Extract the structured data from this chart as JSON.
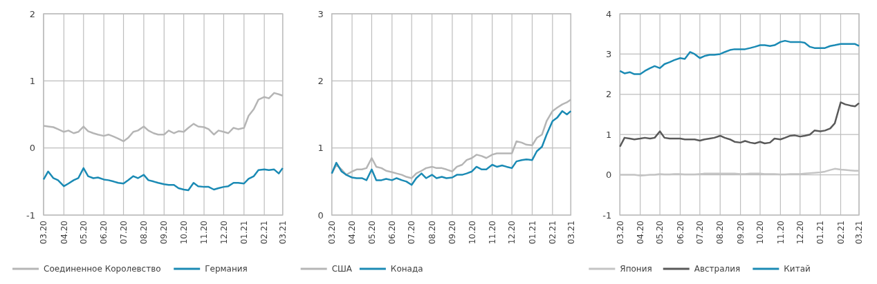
{
  "chart_data": [
    {
      "type": "line",
      "x": [
        "2020-03-01",
        "2020-03-08",
        "2020-03-16",
        "2020-03-23",
        "2020-04-01",
        "2020-04-08",
        "2020-04-16",
        "2020-04-23",
        "2020-05-01",
        "2020-05-08",
        "2020-05-16",
        "2020-05-23",
        "2020-06-01",
        "2020-06-08",
        "2020-06-16",
        "2020-06-23",
        "2020-07-01",
        "2020-07-08",
        "2020-07-16",
        "2020-07-23",
        "2020-08-01",
        "2020-08-08",
        "2020-08-16",
        "2020-08-23",
        "2020-09-01",
        "2020-09-08",
        "2020-09-16",
        "2020-09-23",
        "2020-10-01",
        "2020-10-08",
        "2020-10-16",
        "2020-10-23",
        "2020-11-01",
        "2020-11-08",
        "2020-11-16",
        "2020-11-23",
        "2020-12-01",
        "2020-12-08",
        "2020-12-16",
        "2020-12-23",
        "2021-01-01",
        "2021-01-08",
        "2021-01-16",
        "2021-01-23",
        "2021-02-01",
        "2021-02-08",
        "2021-02-16",
        "2021-02-23",
        "2021-03-01"
      ],
      "xlim": [
        "2020-03-01",
        "2021-03-01"
      ],
      "xticks": [
        {
          "value": "2020-03-01",
          "label": "03.20"
        },
        {
          "value": "2020-04-01",
          "label": "04.20"
        },
        {
          "value": "2020-05-01",
          "label": "05.20"
        },
        {
          "value": "2020-06-01",
          "label": "06.20"
        },
        {
          "value": "2020-07-01",
          "label": "07.20"
        },
        {
          "value": "2020-08-01",
          "label": "08.20"
        },
        {
          "value": "2020-09-01",
          "label": "09.20"
        },
        {
          "value": "2020-10-01",
          "label": "10.20"
        },
        {
          "value": "2020-11-01",
          "label": "11.20"
        },
        {
          "value": "2020-12-01",
          "label": "12.20"
        },
        {
          "value": "2021-01-01",
          "label": "01.21"
        },
        {
          "value": "2021-02-01",
          "label": "02.21"
        },
        {
          "value": "2021-03-01",
          "label": "03.21"
        }
      ],
      "ylim": [
        -1,
        2
      ],
      "yticks": [
        -1,
        0,
        1,
        2
      ],
      "grid": true,
      "legend": "bottom",
      "series": [
        {
          "name": "Соединенное Королевство",
          "color": "#b5b5b5",
          "values": [
            0.33,
            0.32,
            0.31,
            0.28,
            0.24,
            0.26,
            0.22,
            0.24,
            0.32,
            0.25,
            0.22,
            0.2,
            0.18,
            0.2,
            0.17,
            0.14,
            0.1,
            0.15,
            0.24,
            0.26,
            0.32,
            0.26,
            0.22,
            0.2,
            0.2,
            0.26,
            0.22,
            0.25,
            0.24,
            0.3,
            0.36,
            0.32,
            0.31,
            0.28,
            0.2,
            0.26,
            0.24,
            0.22,
            0.3,
            0.28,
            0.3,
            0.48,
            0.58,
            0.72,
            0.76,
            0.74,
            0.82,
            0.8,
            0.78
          ]
        },
        {
          "name": "Германия",
          "color": "#1a8ab4",
          "values": [
            -0.47,
            -0.35,
            -0.45,
            -0.48,
            -0.57,
            -0.53,
            -0.48,
            -0.45,
            -0.3,
            -0.42,
            -0.45,
            -0.44,
            -0.47,
            -0.48,
            -0.5,
            -0.52,
            -0.53,
            -0.48,
            -0.42,
            -0.45,
            -0.4,
            -0.48,
            -0.5,
            -0.52,
            -0.54,
            -0.55,
            -0.55,
            -0.6,
            -0.62,
            -0.63,
            -0.52,
            -0.57,
            -0.58,
            -0.58,
            -0.62,
            -0.6,
            -0.58,
            -0.57,
            -0.52,
            -0.52,
            -0.53,
            -0.46,
            -0.42,
            -0.33,
            -0.32,
            -0.33,
            -0.32,
            -0.38,
            -0.3
          ]
        }
      ]
    },
    {
      "type": "line",
      "x": [
        "2020-03-01",
        "2020-03-08",
        "2020-03-16",
        "2020-03-23",
        "2020-04-01",
        "2020-04-08",
        "2020-04-16",
        "2020-04-23",
        "2020-05-01",
        "2020-05-08",
        "2020-05-16",
        "2020-05-23",
        "2020-06-01",
        "2020-06-08",
        "2020-06-16",
        "2020-06-23",
        "2020-07-01",
        "2020-07-08",
        "2020-07-16",
        "2020-07-23",
        "2020-08-01",
        "2020-08-08",
        "2020-08-16",
        "2020-08-23",
        "2020-09-01",
        "2020-09-08",
        "2020-09-16",
        "2020-09-23",
        "2020-10-01",
        "2020-10-08",
        "2020-10-16",
        "2020-10-23",
        "2020-11-01",
        "2020-11-08",
        "2020-11-16",
        "2020-11-23",
        "2020-12-01",
        "2020-12-08",
        "2020-12-16",
        "2020-12-23",
        "2021-01-01",
        "2021-01-08",
        "2021-01-16",
        "2021-01-23",
        "2021-02-01",
        "2021-02-08",
        "2021-02-16",
        "2021-02-23",
        "2021-03-01"
      ],
      "xlim": [
        "2020-03-01",
        "2021-03-01"
      ],
      "xticks": [
        {
          "value": "2020-03-01",
          "label": "03.20"
        },
        {
          "value": "2020-04-01",
          "label": "04.20"
        },
        {
          "value": "2020-05-01",
          "label": "05.20"
        },
        {
          "value": "2020-06-01",
          "label": "06.20"
        },
        {
          "value": "2020-07-01",
          "label": "07.20"
        },
        {
          "value": "2020-08-01",
          "label": "08.20"
        },
        {
          "value": "2020-09-01",
          "label": "09.20"
        },
        {
          "value": "2020-10-01",
          "label": "10.20"
        },
        {
          "value": "2020-11-01",
          "label": "11.20"
        },
        {
          "value": "2020-12-01",
          "label": "12.20"
        },
        {
          "value": "2021-01-01",
          "label": "01.21"
        },
        {
          "value": "2021-02-01",
          "label": "02.21"
        },
        {
          "value": "2021-03-01",
          "label": "03.21"
        }
      ],
      "ylim": [
        0,
        3
      ],
      "yticks": [
        0,
        1,
        2,
        3
      ],
      "grid": true,
      "legend": "bottom",
      "series": [
        {
          "name": "США",
          "color": "#b5b5b5",
          "values": [
            0.62,
            0.75,
            0.68,
            0.6,
            0.65,
            0.68,
            0.68,
            0.7,
            0.85,
            0.72,
            0.7,
            0.66,
            0.64,
            0.62,
            0.6,
            0.57,
            0.55,
            0.62,
            0.66,
            0.7,
            0.72,
            0.7,
            0.7,
            0.68,
            0.65,
            0.72,
            0.75,
            0.82,
            0.85,
            0.9,
            0.88,
            0.85,
            0.9,
            0.92,
            0.92,
            0.92,
            0.92,
            1.1,
            1.08,
            1.05,
            1.04,
            1.15,
            1.2,
            1.4,
            1.55,
            1.6,
            1.65,
            1.68,
            1.72
          ]
        },
        {
          "name": "Конада",
          "color": "#1a8ab4",
          "values": [
            0.62,
            0.78,
            0.65,
            0.6,
            0.56,
            0.55,
            0.55,
            0.52,
            0.68,
            0.52,
            0.52,
            0.54,
            0.52,
            0.55,
            0.52,
            0.5,
            0.45,
            0.55,
            0.62,
            0.55,
            0.6,
            0.55,
            0.57,
            0.55,
            0.56,
            0.6,
            0.6,
            0.62,
            0.65,
            0.72,
            0.68,
            0.68,
            0.75,
            0.72,
            0.74,
            0.72,
            0.7,
            0.8,
            0.82,
            0.83,
            0.82,
            0.95,
            1.02,
            1.2,
            1.4,
            1.45,
            1.55,
            1.5,
            1.55
          ]
        }
      ]
    },
    {
      "type": "line",
      "x": [
        "2020-03-01",
        "2020-03-08",
        "2020-03-16",
        "2020-03-23",
        "2020-04-01",
        "2020-04-08",
        "2020-04-16",
        "2020-04-23",
        "2020-05-01",
        "2020-05-08",
        "2020-05-16",
        "2020-05-23",
        "2020-06-01",
        "2020-06-08",
        "2020-06-16",
        "2020-06-23",
        "2020-07-01",
        "2020-07-08",
        "2020-07-16",
        "2020-07-23",
        "2020-08-01",
        "2020-08-08",
        "2020-08-16",
        "2020-08-23",
        "2020-09-01",
        "2020-09-08",
        "2020-09-16",
        "2020-09-23",
        "2020-10-01",
        "2020-10-08",
        "2020-10-16",
        "2020-10-23",
        "2020-11-01",
        "2020-11-08",
        "2020-11-16",
        "2020-11-23",
        "2020-12-01",
        "2020-12-08",
        "2020-12-16",
        "2020-12-23",
        "2021-01-01",
        "2021-01-08",
        "2021-01-16",
        "2021-01-23",
        "2021-02-01",
        "2021-02-08",
        "2021-02-16",
        "2021-02-23",
        "2021-03-01"
      ],
      "xlim": [
        "2020-03-01",
        "2021-03-01"
      ],
      "xticks": [
        {
          "value": "2020-03-01",
          "label": "03.20"
        },
        {
          "value": "2020-04-01",
          "label": "04.20"
        },
        {
          "value": "2020-05-01",
          "label": "05.20"
        },
        {
          "value": "2020-06-01",
          "label": "06.20"
        },
        {
          "value": "2020-07-01",
          "label": "07.20"
        },
        {
          "value": "2020-08-01",
          "label": "08.20"
        },
        {
          "value": "2020-09-01",
          "label": "09.20"
        },
        {
          "value": "2020-10-01",
          "label": "10.20"
        },
        {
          "value": "2020-11-01",
          "label": "11.20"
        },
        {
          "value": "2020-12-01",
          "label": "12.20"
        },
        {
          "value": "2021-01-01",
          "label": "01.21"
        },
        {
          "value": "2021-02-01",
          "label": "02.21"
        },
        {
          "value": "2021-03-01",
          "label": "03.21"
        }
      ],
      "ylim": [
        -1,
        4
      ],
      "yticks": [
        -1,
        0,
        1,
        2,
        3,
        4
      ],
      "grid": true,
      "legend": "bottom",
      "series": [
        {
          "name": "Япония",
          "color": "#c4c4c4",
          "values": [
            0,
            0,
            0,
            0,
            -0.02,
            -0.01,
            0,
            0,
            0.02,
            0.01,
            0.01,
            0.02,
            0.02,
            0.01,
            0.01,
            0.01,
            0.02,
            0.03,
            0.03,
            0.03,
            0.03,
            0.03,
            0.03,
            0.03,
            0.02,
            0.02,
            0.03,
            0.03,
            0.03,
            0.02,
            0.02,
            0.02,
            0.01,
            0.01,
            0.02,
            0.02,
            0.02,
            0.03,
            0.04,
            0.05,
            0.06,
            0.08,
            0.12,
            0.15,
            0.13,
            0.12,
            0.11,
            0.1,
            0.1
          ]
        },
        {
          "name": "Австралия",
          "color": "#595959",
          "values": [
            0.7,
            0.92,
            0.9,
            0.88,
            0.9,
            0.92,
            0.9,
            0.92,
            1.08,
            0.92,
            0.9,
            0.9,
            0.9,
            0.88,
            0.88,
            0.88,
            0.85,
            0.88,
            0.9,
            0.92,
            0.97,
            0.92,
            0.88,
            0.82,
            0.8,
            0.84,
            0.8,
            0.78,
            0.82,
            0.78,
            0.8,
            0.9,
            0.88,
            0.92,
            0.97,
            0.98,
            0.95,
            0.97,
            1.0,
            1.1,
            1.08,
            1.1,
            1.15,
            1.28,
            1.8,
            1.75,
            1.72,
            1.7,
            1.78
          ]
        },
        {
          "name": "Китай",
          "color": "#1a8ab4",
          "values": [
            2.58,
            2.52,
            2.55,
            2.5,
            2.5,
            2.58,
            2.65,
            2.7,
            2.65,
            2.75,
            2.8,
            2.85,
            2.9,
            2.88,
            3.05,
            3.0,
            2.9,
            2.95,
            2.98,
            2.98,
            3.0,
            3.05,
            3.1,
            3.12,
            3.12,
            3.12,
            3.15,
            3.18,
            3.22,
            3.22,
            3.2,
            3.22,
            3.3,
            3.33,
            3.3,
            3.3,
            3.3,
            3.28,
            3.18,
            3.15,
            3.15,
            3.15,
            3.2,
            3.22,
            3.25,
            3.25,
            3.25,
            3.25,
            3.2
          ]
        }
      ]
    }
  ]
}
